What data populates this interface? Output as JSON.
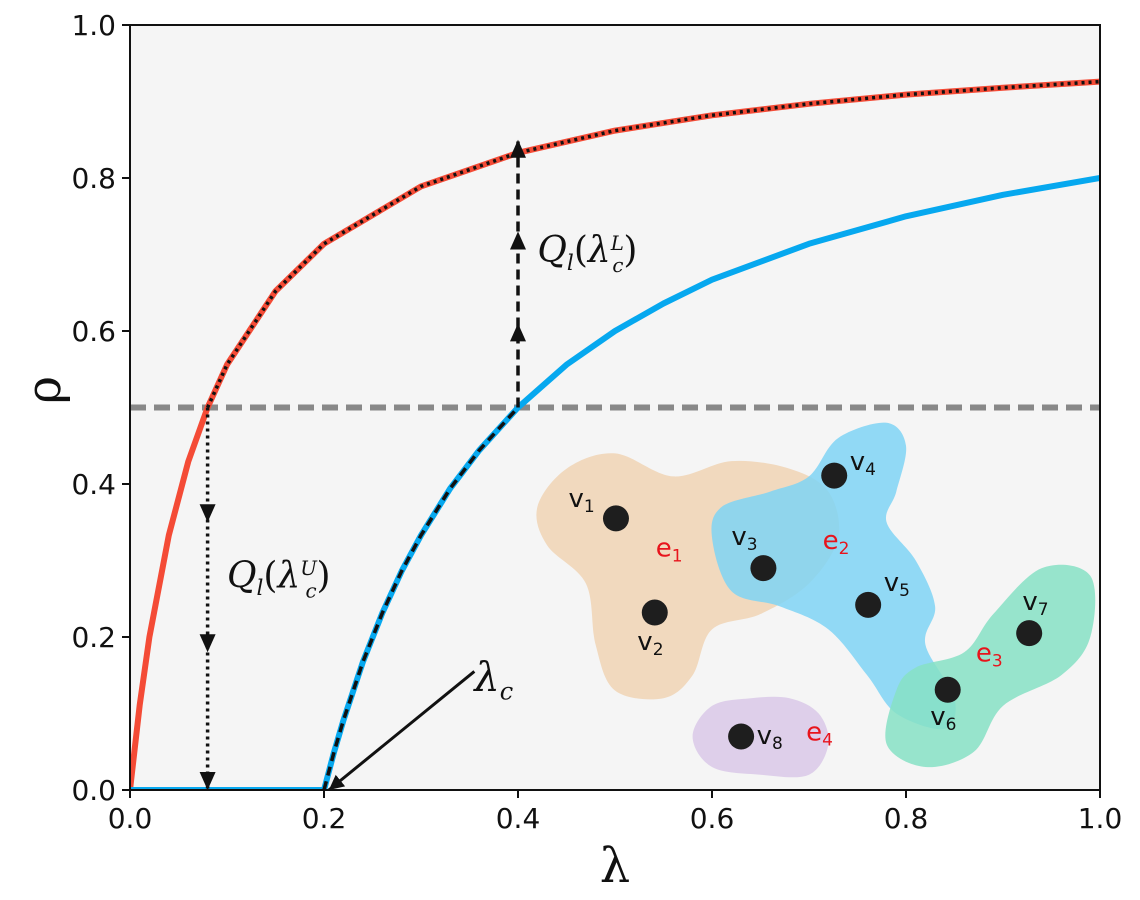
{
  "chart_data": {
    "type": "line",
    "xlabel": "λ",
    "ylabel": "ρ",
    "xlim": [
      0,
      1
    ],
    "ylim": [
      0,
      1
    ],
    "xticks": [
      "0.0",
      "0.2",
      "0.4",
      "0.6",
      "0.8",
      "1.0"
    ],
    "yticks": [
      "0.0",
      "0.2",
      "0.4",
      "0.6",
      "0.8",
      "1.0"
    ],
    "grid": false,
    "background": "#f5f5f5",
    "series": [
      {
        "color": "#f44b36",
        "style": "solid",
        "x": [
          0,
          0.01,
          0.02,
          0.04,
          0.06,
          0.08,
          0.1,
          0.15,
          0.2,
          0.3,
          0.4,
          0.5,
          0.6,
          0.7,
          0.8,
          0.9,
          1.0
        ],
        "y": [
          0,
          0.111,
          0.2,
          0.333,
          0.429,
          0.5,
          0.556,
          0.652,
          0.714,
          0.789,
          0.833,
          0.862,
          0.882,
          0.897,
          0.909,
          0.918,
          0.926
        ]
      },
      {
        "color": "#111111",
        "style": "dotted",
        "x": [
          0.08,
          0.1,
          0.15,
          0.2,
          0.3,
          0.4,
          0.5,
          0.6,
          0.7,
          0.8,
          0.9,
          1.0
        ],
        "y": [
          0.5,
          0.556,
          0.652,
          0.714,
          0.789,
          0.833,
          0.862,
          0.882,
          0.897,
          0.909,
          0.918,
          0.926
        ]
      },
      {
        "color": "#06a8ef",
        "style": "solid",
        "x": [
          0,
          0.2,
          0.21,
          0.22,
          0.24,
          0.26,
          0.28,
          0.3,
          0.33,
          0.36,
          0.4,
          0.45,
          0.5,
          0.55,
          0.6,
          0.7,
          0.8,
          0.9,
          1.0
        ],
        "y": [
          0,
          0,
          0.048,
          0.091,
          0.167,
          0.231,
          0.286,
          0.333,
          0.394,
          0.444,
          0.5,
          0.556,
          0.6,
          0.636,
          0.667,
          0.714,
          0.75,
          0.778,
          0.8
        ]
      },
      {
        "color": "#111111",
        "style": "dashed",
        "x": [
          0.2,
          0.21,
          0.22,
          0.24,
          0.26,
          0.28,
          0.3,
          0.33,
          0.36,
          0.4
        ],
        "y": [
          0,
          0.048,
          0.091,
          0.167,
          0.231,
          0.286,
          0.333,
          0.394,
          0.444,
          0.5
        ]
      },
      {
        "color": "#06a8ef",
        "style": "dashed",
        "x": [
          0,
          0.2
        ],
        "y": [
          0,
          0
        ]
      }
    ],
    "threshold_line": {
      "y": 0.5,
      "color": "#888888",
      "style": "dashed"
    },
    "arrows": [
      {
        "x": 0.08,
        "y_from": 0.5,
        "y_to": 0.0,
        "style": "dotted",
        "heads_at": [
          0.35,
          0.18,
          0.0
        ]
      },
      {
        "x": 0.4,
        "y_from": 0.5,
        "y_to": 0.85,
        "style": "dashed",
        "heads_at": [
          0.61,
          0.73,
          0.85
        ]
      },
      {
        "x_from": 0.355,
        "y_from": 0.155,
        "x_to": 0.205,
        "y_to": 0.0,
        "style": "solid"
      }
    ],
    "annotations": [
      {
        "id": "ql_upper",
        "base": "Q",
        "sub": "l",
        "arg": "λ",
        "arg_sub": "c",
        "arg_sup": "U",
        "x": 0.1,
        "y": 0.265
      },
      {
        "id": "ql_lower",
        "base": "Q",
        "sub": "l",
        "arg": "λ",
        "arg_sub": "c",
        "arg_sup": "L",
        "x": 0.42,
        "y": 0.69
      },
      {
        "id": "lambda_c",
        "base": "λ",
        "sub": "c",
        "x": 0.355,
        "y": 0.13
      }
    ],
    "inset_hypergraph": {
      "hyperedges": [
        {
          "label": "e",
          "index": "1",
          "color": "#f0d4b4",
          "label_x": 0.542,
          "label_y": 0.305
        },
        {
          "label": "e",
          "index": "2",
          "color": "#7fd3f5",
          "label_x": 0.714,
          "label_y": 0.315
        },
        {
          "label": "e",
          "index": "3",
          "color": "#86e0c4",
          "label_x": 0.872,
          "label_y": 0.168
        },
        {
          "label": "e",
          "index": "4",
          "color": "#d9c8e8",
          "label_x": 0.697,
          "label_y": 0.065
        }
      ],
      "vertices": [
        {
          "label": "v",
          "index": "1",
          "x": 0.501,
          "y": 0.355,
          "label_x": 0.452,
          "label_y": 0.37
        },
        {
          "label": "v",
          "index": "2",
          "x": 0.541,
          "y": 0.232,
          "label_x": 0.523,
          "label_y": 0.183
        },
        {
          "label": "v",
          "index": "3",
          "x": 0.653,
          "y": 0.29,
          "label_x": 0.62,
          "label_y": 0.32
        },
        {
          "label": "v",
          "index": "4",
          "x": 0.726,
          "y": 0.411,
          "label_x": 0.742,
          "label_y": 0.418
        },
        {
          "label": "v",
          "index": "5",
          "x": 0.761,
          "y": 0.242,
          "label_x": 0.777,
          "label_y": 0.26
        },
        {
          "label": "v",
          "index": "6",
          "x": 0.843,
          "y": 0.131,
          "label_x": 0.825,
          "label_y": 0.085
        },
        {
          "label": "v",
          "index": "7",
          "x": 0.927,
          "y": 0.205,
          "label_x": 0.92,
          "label_y": 0.235
        },
        {
          "label": "v",
          "index": "8",
          "x": 0.63,
          "y": 0.07,
          "label_x": 0.646,
          "label_y": 0.06
        }
      ]
    }
  }
}
